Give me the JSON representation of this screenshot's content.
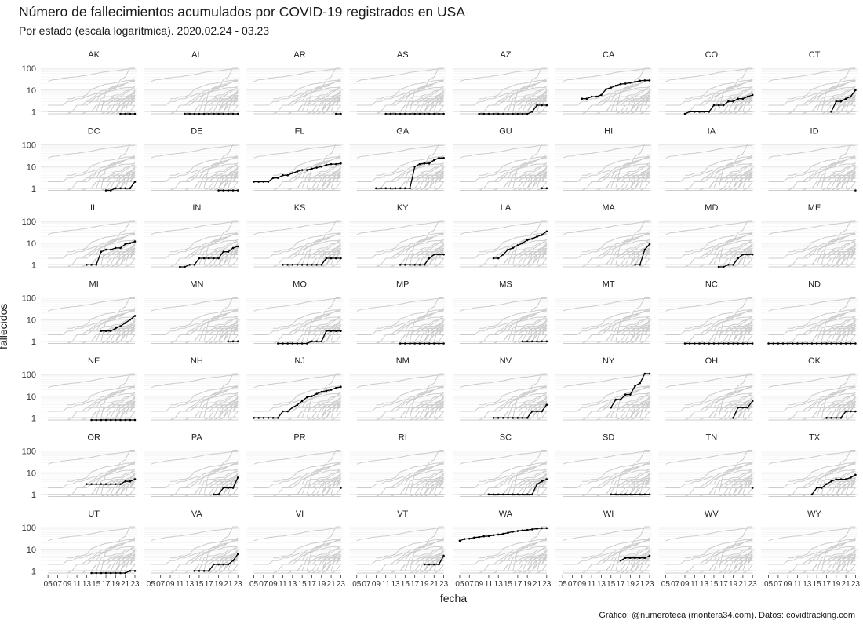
{
  "title": "Número de fallecimientos acumulados por COVID-19 registrados en USA",
  "subtitle": "Por estado (escala logarítmica). 2020.02.24 - 03.23",
  "caption": "Gráfico: @numeroteca (montera34.com). Datos: covidtracking.com",
  "chart_data": {
    "type": "line",
    "facets": true,
    "xlabel": "fecha",
    "ylabel": "fallecidos",
    "y_scale": "log",
    "ylim": [
      0.8,
      120
    ],
    "xlim": [
      4,
      23
    ],
    "y_ticks": [
      1,
      10,
      100
    ],
    "y_tick_labels": [
      "1",
      "10",
      "100"
    ],
    "x_ticks": [
      5,
      7,
      9,
      11,
      13,
      15,
      17,
      19,
      21,
      23
    ],
    "x_tick_labels": [
      "05",
      "07",
      "09",
      "11",
      "13",
      "15",
      "17",
      "19",
      "21",
      "23"
    ],
    "grid": true,
    "legend": "none",
    "highlight_color": "#000000",
    "background_color": "#cccccc",
    "states": [
      {
        "name": "AK",
        "x": [
          20,
          21,
          22,
          23
        ],
        "y": [
          0.8,
          0.8,
          0.8,
          0.8
        ]
      },
      {
        "name": "AL",
        "x": [
          12,
          13,
          14,
          15,
          16,
          17,
          18,
          19,
          20,
          21,
          22,
          23
        ],
        "y": [
          0.8,
          0.8,
          0.8,
          0.8,
          0.8,
          0.8,
          0.8,
          0.8,
          0.8,
          0.8,
          0.8,
          0.8
        ]
      },
      {
        "name": "AR",
        "x": [
          22,
          23
        ],
        "y": [
          0.8,
          0.8
        ]
      },
      {
        "name": "AS",
        "x": [
          11,
          12,
          13,
          14,
          15,
          16,
          17,
          18,
          19,
          20,
          21,
          22,
          23
        ],
        "y": [
          0.8,
          0.8,
          0.8,
          0.8,
          0.8,
          0.8,
          0.8,
          0.8,
          0.8,
          0.8,
          0.8,
          0.8,
          0.8
        ]
      },
      {
        "name": "AZ",
        "x": [
          9,
          10,
          11,
          12,
          13,
          14,
          15,
          16,
          17,
          18,
          19,
          20,
          21,
          22,
          23
        ],
        "y": [
          0.8,
          0.8,
          0.8,
          0.8,
          0.8,
          0.8,
          0.8,
          0.8,
          0.8,
          0.8,
          0.8,
          1,
          2,
          2,
          2
        ]
      },
      {
        "name": "CA",
        "x": [
          9,
          10,
          11,
          12,
          13,
          14,
          15,
          16,
          17,
          18,
          19,
          20,
          21,
          22,
          23
        ],
        "y": [
          4,
          4,
          5,
          5,
          6,
          11,
          13,
          16,
          19,
          20,
          22,
          24,
          27,
          28,
          28
        ]
      },
      {
        "name": "CO",
        "x": [
          9,
          10,
          11,
          12,
          13,
          14,
          15,
          16,
          17,
          18,
          19,
          20,
          21,
          22,
          23
        ],
        "y": [
          0.8,
          1,
          1,
          1,
          1,
          1,
          2,
          2,
          2,
          3,
          3,
          4,
          4,
          5,
          6
        ]
      },
      {
        "name": "CT",
        "x": [
          18,
          19,
          20,
          21,
          22,
          23
        ],
        "y": [
          1,
          3,
          3,
          4,
          5,
          10
        ]
      },
      {
        "name": "DC",
        "x": [
          17,
          18,
          19,
          20,
          21,
          22,
          23
        ],
        "y": [
          0.8,
          0.8,
          1,
          1,
          1,
          1,
          2
        ]
      },
      {
        "name": "DE",
        "x": [
          19,
          20,
          21,
          22,
          23
        ],
        "y": [
          0.8,
          0.8,
          0.8,
          0.8,
          0.8
        ]
      },
      {
        "name": "FL",
        "x": [
          5,
          6,
          7,
          8,
          9,
          10,
          11,
          12,
          13,
          14,
          15,
          16,
          17,
          18,
          19,
          20,
          21,
          22,
          23
        ],
        "y": [
          2,
          2,
          2,
          2,
          3,
          3,
          4,
          4,
          5,
          6,
          7,
          7,
          8,
          9,
          10,
          12,
          13,
          13,
          14
        ]
      },
      {
        "name": "GA",
        "x": [
          9,
          10,
          11,
          12,
          13,
          14,
          15,
          16,
          17,
          18,
          19,
          20,
          21,
          22,
          23
        ],
        "y": [
          1,
          1,
          1,
          1,
          1,
          1,
          1,
          1,
          10,
          13,
          14,
          14,
          20,
          25,
          25
        ]
      },
      {
        "name": "GU",
        "x": [
          22,
          23
        ],
        "y": [
          1,
          1
        ]
      },
      {
        "name": "HI",
        "x": [],
        "y": []
      },
      {
        "name": "IA",
        "x": [],
        "y": []
      },
      {
        "name": "ID",
        "x": [
          23
        ],
        "y": [
          0.8
        ]
      },
      {
        "name": "IL",
        "x": [
          13,
          14,
          15,
          16,
          17,
          18,
          19,
          20,
          21,
          22,
          23
        ],
        "y": [
          1,
          1,
          1,
          4,
          5,
          5,
          6,
          6,
          9,
          10,
          12
        ]
      },
      {
        "name": "IN",
        "x": [
          11,
          12,
          13,
          14,
          15,
          16,
          17,
          18,
          19,
          20,
          21,
          22,
          23
        ],
        "y": [
          0.8,
          0.8,
          1,
          1,
          2,
          2,
          2,
          2,
          2,
          4,
          4,
          6,
          7
        ]
      },
      {
        "name": "KS",
        "x": [
          11,
          12,
          13,
          14,
          15,
          16,
          17,
          18,
          19,
          20,
          21,
          22,
          23
        ],
        "y": [
          1,
          1,
          1,
          1,
          1,
          1,
          1,
          1,
          1,
          2,
          2,
          2,
          2
        ]
      },
      {
        "name": "KY",
        "x": [
          14,
          15,
          16,
          17,
          18,
          19,
          20,
          21,
          22,
          23
        ],
        "y": [
          1,
          1,
          1,
          1,
          1,
          1,
          2,
          3,
          3,
          3
        ]
      },
      {
        "name": "LA",
        "x": [
          12,
          13,
          14,
          15,
          16,
          17,
          18,
          19,
          20,
          21,
          22,
          23
        ],
        "y": [
          2,
          2,
          3,
          5,
          6,
          8,
          10,
          14,
          16,
          20,
          24,
          35
        ]
      },
      {
        "name": "MA",
        "x": [
          20,
          21,
          22,
          23
        ],
        "y": [
          1,
          1,
          5,
          9
        ]
      },
      {
        "name": "MD",
        "x": [
          16,
          17,
          18,
          19,
          20,
          21,
          22,
          23
        ],
        "y": [
          0.8,
          0.8,
          1,
          1,
          2,
          3,
          3,
          3
        ]
      },
      {
        "name": "ME",
        "x": [],
        "y": []
      },
      {
        "name": "MI",
        "x": [
          16,
          17,
          18,
          19,
          20,
          21,
          22,
          23
        ],
        "y": [
          3,
          3,
          3,
          4,
          5,
          7,
          10,
          15
        ]
      },
      {
        "name": "MN",
        "x": [
          21,
          22,
          23
        ],
        "y": [
          1,
          1,
          1
        ]
      },
      {
        "name": "MO",
        "x": [
          10,
          11,
          12,
          13,
          14,
          15,
          16,
          17,
          18,
          19,
          20,
          21,
          22,
          23
        ],
        "y": [
          0.8,
          0.8,
          0.8,
          0.8,
          0.8,
          0.8,
          0.8,
          1,
          1,
          1,
          3,
          3,
          3,
          3
        ]
      },
      {
        "name": "MP",
        "x": [
          14,
          15,
          16,
          17,
          18,
          19,
          20,
          21,
          22,
          23
        ],
        "y": [
          0.8,
          0.8,
          0.8,
          0.8,
          0.8,
          0.8,
          0.8,
          0.8,
          0.8,
          0.8
        ]
      },
      {
        "name": "MS",
        "x": [
          18,
          19,
          20,
          21,
          22,
          23
        ],
        "y": [
          1,
          1,
          1,
          1,
          1,
          1
        ]
      },
      {
        "name": "MT",
        "x": [],
        "y": []
      },
      {
        "name": "NC",
        "x": [
          9,
          10,
          11,
          12,
          13,
          14,
          15,
          16,
          17,
          18,
          19,
          20,
          21,
          22,
          23
        ],
        "y": [
          0.8,
          0.8,
          0.8,
          0.8,
          0.8,
          0.8,
          0.8,
          0.8,
          0.8,
          0.8,
          0.8,
          0.8,
          0.8,
          0.8,
          0.8
        ]
      },
      {
        "name": "ND",
        "x": [
          5,
          6,
          7,
          8,
          9,
          10,
          11,
          12,
          13,
          14,
          15,
          16,
          17,
          18,
          19,
          20,
          21,
          22,
          23
        ],
        "y": [
          0.8,
          0.8,
          0.8,
          0.8,
          0.8,
          0.8,
          0.8,
          0.8,
          0.8,
          0.8,
          0.8,
          0.8,
          0.8,
          0.8,
          0.8,
          0.8,
          0.8,
          0.8,
          0.8
        ]
      },
      {
        "name": "NE",
        "x": [
          14,
          15,
          16,
          17,
          18,
          19,
          20,
          21,
          22,
          23
        ],
        "y": [
          0.8,
          0.8,
          0.8,
          0.8,
          0.8,
          0.8,
          0.8,
          0.8,
          0.8,
          0.8
        ]
      },
      {
        "name": "NH",
        "x": [],
        "y": []
      },
      {
        "name": "NJ",
        "x": [
          5,
          6,
          7,
          8,
          9,
          10,
          11,
          12,
          13,
          14,
          15,
          16,
          17,
          18,
          19,
          20,
          21,
          22,
          23
        ],
        "y": [
          1,
          1,
          1,
          1,
          1,
          1,
          2,
          2,
          3,
          4,
          6,
          9,
          10,
          13,
          16,
          18,
          20,
          24,
          27
        ]
      },
      {
        "name": "NM",
        "x": [],
        "y": []
      },
      {
        "name": "NV",
        "x": [
          12,
          13,
          14,
          15,
          16,
          17,
          18,
          19,
          20,
          21,
          22,
          23
        ],
        "y": [
          1,
          1,
          1,
          1,
          1,
          1,
          1,
          1,
          2,
          2,
          2,
          4
        ]
      },
      {
        "name": "NY",
        "x": [
          15,
          16,
          17,
          18,
          19,
          20,
          21,
          22,
          23
        ],
        "y": [
          3,
          7,
          7,
          12,
          12,
          30,
          40,
          110,
          110
        ]
      },
      {
        "name": "OH",
        "x": [
          19,
          20,
          21,
          22,
          23
        ],
        "y": [
          1,
          3,
          3,
          3,
          6
        ]
      },
      {
        "name": "OK",
        "x": [
          17,
          18,
          19,
          20,
          21,
          22,
          23
        ],
        "y": [
          1,
          1,
          1,
          1,
          2,
          2,
          2
        ]
      },
      {
        "name": "OR",
        "x": [
          13,
          14,
          15,
          16,
          17,
          18,
          19,
          20,
          21,
          22,
          23
        ],
        "y": [
          3,
          3,
          3,
          3,
          3,
          3,
          3,
          3,
          4,
          4,
          5
        ]
      },
      {
        "name": "PA",
        "x": [
          18,
          19,
          20,
          21,
          22,
          23
        ],
        "y": [
          1,
          1,
          2,
          2,
          2,
          6
        ]
      },
      {
        "name": "PR",
        "x": [
          23
        ],
        "y": [
          2
        ]
      },
      {
        "name": "RI",
        "x": [],
        "y": []
      },
      {
        "name": "SC",
        "x": [
          11,
          12,
          13,
          14,
          15,
          16,
          17,
          18,
          19,
          20,
          21,
          22,
          23
        ],
        "y": [
          1,
          1,
          1,
          1,
          1,
          1,
          1,
          1,
          1,
          1,
          3,
          4,
          5
        ]
      },
      {
        "name": "SD",
        "x": [
          15,
          16,
          17,
          18,
          19,
          20,
          21,
          22,
          23
        ],
        "y": [
          1,
          1,
          1,
          1,
          1,
          1,
          1,
          1,
          1
        ]
      },
      {
        "name": "TN",
        "x": [
          23
        ],
        "y": [
          2
        ]
      },
      {
        "name": "TX",
        "x": [
          14,
          15,
          16,
          17,
          18,
          19,
          20,
          21,
          22,
          23
        ],
        "y": [
          1,
          2,
          2,
          3,
          4,
          5,
          5,
          5,
          6,
          8
        ]
      },
      {
        "name": "UT",
        "x": [
          14,
          15,
          16,
          17,
          18,
          19,
          20,
          21,
          22,
          23
        ],
        "y": [
          0.8,
          0.8,
          0.8,
          0.8,
          0.8,
          0.8,
          0.8,
          0.8,
          1,
          1
        ]
      },
      {
        "name": "VA",
        "x": [
          14,
          15,
          16,
          17,
          18,
          19,
          20,
          21,
          22,
          23
        ],
        "y": [
          1,
          1,
          1,
          1,
          2,
          2,
          2,
          2,
          3,
          6
        ]
      },
      {
        "name": "VI",
        "x": [],
        "y": []
      },
      {
        "name": "VT",
        "x": [
          19,
          20,
          21,
          22,
          23
        ],
        "y": [
          2,
          2,
          2,
          2,
          5
        ]
      },
      {
        "name": "WA",
        "x": [
          5,
          6,
          7,
          8,
          9,
          10,
          11,
          12,
          13,
          14,
          15,
          16,
          17,
          18,
          19,
          20,
          21,
          22,
          23
        ],
        "y": [
          25,
          30,
          31,
          35,
          37,
          40,
          41,
          45,
          48,
          52,
          58,
          65,
          70,
          75,
          78,
          83,
          90,
          94,
          95
        ]
      },
      {
        "name": "WI",
        "x": [
          17,
          18,
          19,
          20,
          21,
          22,
          23
        ],
        "y": [
          3,
          4,
          4,
          4,
          4,
          4,
          5
        ]
      },
      {
        "name": "WV",
        "x": [],
        "y": []
      },
      {
        "name": "WY",
        "x": [],
        "y": []
      }
    ]
  }
}
